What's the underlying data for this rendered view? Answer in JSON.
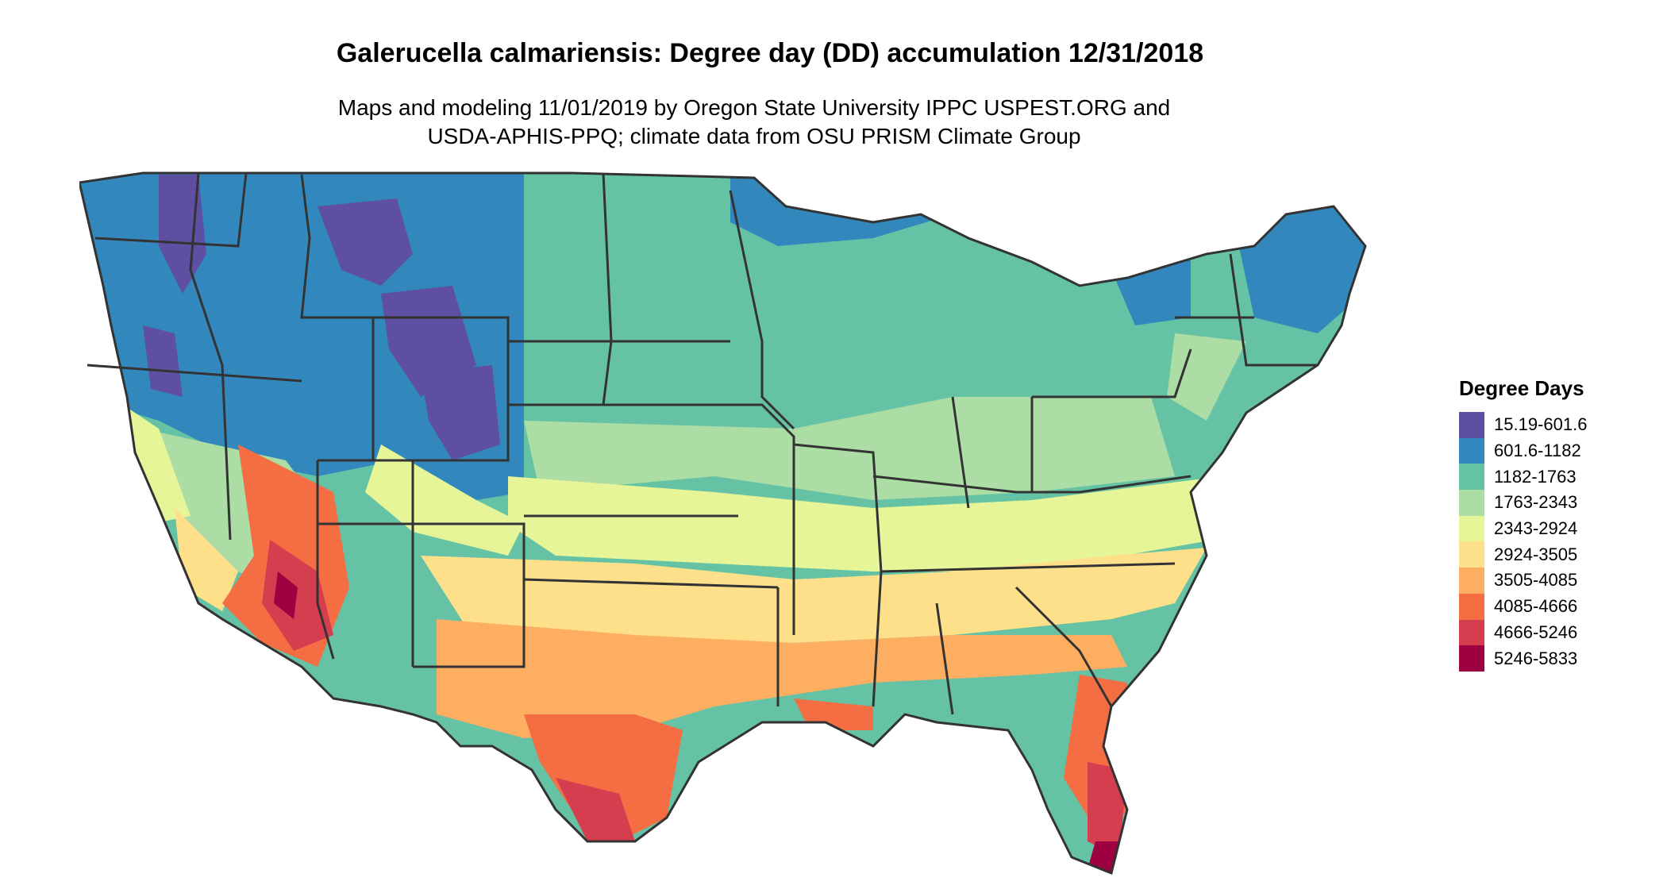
{
  "title": "Galerucella calmariensis: Degree day (DD) accumulation 12/31/2018",
  "subtitle": [
    "Maps and modeling 11/01/2019 by Oregon State University IPPC USPEST.ORG and",
    "USDA-APHIS-PPQ; climate data from OSU PRISM Climate Group"
  ],
  "legend": {
    "title": "Degree Days",
    "items": [
      {
        "label": "15.19-601.6",
        "color": "#5e4fa2"
      },
      {
        "label": "601.6-1182",
        "color": "#3288bd"
      },
      {
        "label": "1182-1763",
        "color": "#66c2a5"
      },
      {
        "label": "1763-2343",
        "color": "#abdda4"
      },
      {
        "label": "2343-2924",
        "color": "#e6f598"
      },
      {
        "label": "2924-3505",
        "color": "#fee08b"
      },
      {
        "label": "3505-4085",
        "color": "#fdae61"
      },
      {
        "label": "4085-4666",
        "color": "#f46d43"
      },
      {
        "label": "4666-5246",
        "color": "#d53e4f"
      },
      {
        "label": "5246-5833",
        "color": "#9e0142"
      }
    ]
  }
}
